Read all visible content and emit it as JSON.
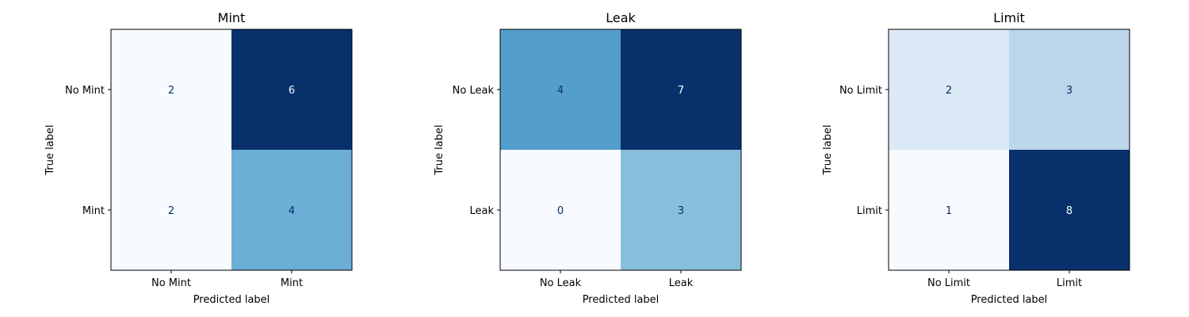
{
  "chart_data": [
    {
      "type": "heatmap",
      "title": "Mint",
      "xlabel": "Predicted label",
      "ylabel": "True label",
      "x_tick_labels": [
        "No Mint",
        "Mint"
      ],
      "y_tick_labels": [
        "No Mint",
        "Mint"
      ],
      "matrix": [
        [
          2,
          6
        ],
        [
          2,
          4
        ]
      ],
      "colormap": "Blues"
    },
    {
      "type": "heatmap",
      "title": "Leak",
      "xlabel": "Predicted label",
      "ylabel": "True label",
      "x_tick_labels": [
        "No Leak",
        "Leak"
      ],
      "y_tick_labels": [
        "No Leak",
        "Leak"
      ],
      "matrix": [
        [
          4,
          7
        ],
        [
          0,
          3
        ]
      ],
      "colormap": "Blues"
    },
    {
      "type": "heatmap",
      "title": "Limit",
      "xlabel": "Predicted label",
      "ylabel": "True label",
      "x_tick_labels": [
        "No Limit",
        "Limit"
      ],
      "y_tick_labels": [
        "No Limit",
        "Limit"
      ],
      "matrix": [
        [
          2,
          3
        ],
        [
          1,
          8
        ]
      ],
      "colormap": "Blues"
    }
  ]
}
